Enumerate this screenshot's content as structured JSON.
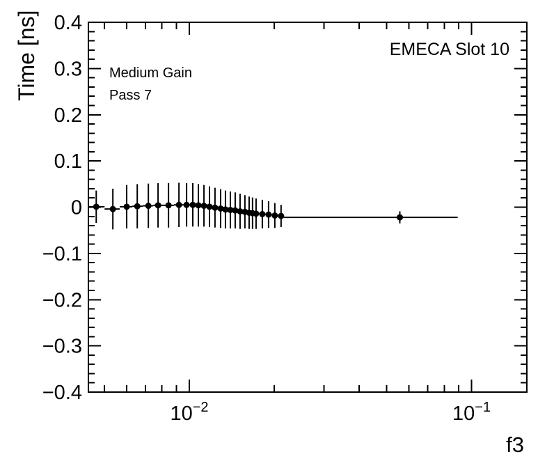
{
  "chart_data": {
    "type": "scatter",
    "title": "",
    "xlabel": "f3",
    "ylabel": "Time [ns]",
    "x_scale": "log",
    "xlim": [
      0.00439,
      0.157
    ],
    "ylim": [
      -0.4,
      0.4
    ],
    "grid": false,
    "legend": "none",
    "annotations": {
      "top_right": "EMECA Slot 10",
      "top_left_line1": "Medium Gain",
      "top_left_line2": "Pass 7"
    },
    "x_major_ticks": [
      {
        "v": 0.01,
        "base": "10",
        "exp": "−2"
      },
      {
        "v": 0.1,
        "base": "10",
        "exp": "−1"
      }
    ],
    "x_minor_ticks": [
      0.005,
      0.006,
      0.007,
      0.008,
      0.009,
      0.02,
      0.03,
      0.04,
      0.05,
      0.06,
      0.07,
      0.08,
      0.09
    ],
    "y_major_ticks": [
      {
        "v": 0.4,
        "label": "0.4"
      },
      {
        "v": 0.3,
        "label": "0.3"
      },
      {
        "v": 0.2,
        "label": "0.2"
      },
      {
        "v": 0.1,
        "label": "0.1"
      },
      {
        "v": 0.0,
        "label": "0"
      },
      {
        "v": -0.1,
        "label": "−0.1"
      },
      {
        "v": -0.2,
        "label": "−0.2"
      },
      {
        "v": -0.3,
        "label": "−0.3"
      },
      {
        "v": -0.4,
        "label": "−0.4"
      }
    ],
    "y_minor_step": 0.02,
    "marker": "filled-circle",
    "color": "#000000",
    "series": [
      {
        "name": "time-offset-vs-f3",
        "x": [
          0.00468,
          0.00536,
          0.006,
          0.00654,
          0.00716,
          0.00775,
          0.00844,
          0.00919,
          0.00978,
          0.01029,
          0.01077,
          0.01127,
          0.01179,
          0.01233,
          0.01291,
          0.01343,
          0.01398,
          0.01454,
          0.01513,
          0.01574,
          0.01629,
          0.01675,
          0.01724,
          0.01814,
          0.01909,
          0.02009,
          0.02114,
          0.0557
        ],
        "y": [
          0.001,
          -0.004,
          0.001,
          0.002,
          0.003,
          0.004,
          0.004,
          0.005,
          0.005,
          0.005,
          0.004,
          0.003,
          0.001,
          -0.001,
          -0.003,
          -0.005,
          -0.006,
          -0.007,
          -0.009,
          -0.01,
          -0.012,
          -0.013,
          -0.014,
          -0.015,
          -0.016,
          -0.018,
          -0.019,
          -0.022
        ],
        "ey": [
          0.035,
          0.044,
          0.047,
          0.048,
          0.048,
          0.048,
          0.048,
          0.048,
          0.047,
          0.047,
          0.046,
          0.045,
          0.044,
          0.043,
          0.042,
          0.041,
          0.04,
          0.039,
          0.038,
          0.036,
          0.035,
          0.034,
          0.033,
          0.031,
          0.029,
          0.027,
          0.024,
          0.013
        ],
        "bin_edges": [
          0.00439,
          0.00501,
          0.00567,
          0.00628,
          0.00684,
          0.00745,
          0.00811,
          0.00883,
          0.0095,
          0.01006,
          0.01052,
          0.01101,
          0.01152,
          0.01206,
          0.01262,
          0.0132,
          0.01374,
          0.01429,
          0.01487,
          0.01548,
          0.01602,
          0.01657,
          0.01705,
          0.01774,
          0.01866,
          0.01963,
          0.02067,
          0.02162,
          0.0893
        ]
      }
    ]
  },
  "style": {
    "frame_color": "#000000",
    "background": "#ffffff",
    "text_color": "#000000"
  }
}
